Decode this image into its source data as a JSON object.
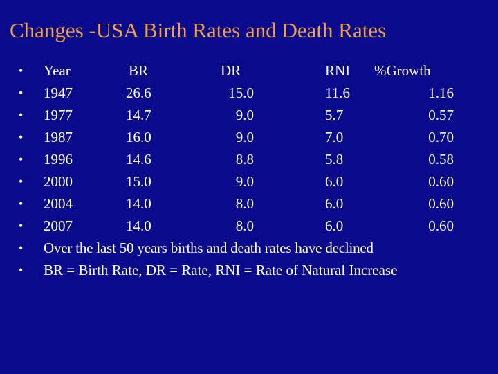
{
  "slide": {
    "title": "Changes -USA Birth Rates and Death Rates",
    "bullet_glyph": "•",
    "colors": {
      "background": "#0a0a8c",
      "title": "#f0a048",
      "text": "#ffffff"
    }
  },
  "table": {
    "headers": {
      "year": "Year",
      "br": "BR",
      "dr": "DR",
      "rni": "RNI",
      "growth": "%Growth"
    },
    "rows": [
      {
        "year": "1947",
        "br": "26.6",
        "dr": "15.0",
        "rni": "11.6",
        "growth": "1.16"
      },
      {
        "year": "1977",
        "br": "14.7",
        "dr": "9.0",
        "rni": "5.7",
        "growth": "0.57"
      },
      {
        "year": "1987",
        "br": "16.0",
        "dr": "9.0",
        "rni": "7.0",
        "growth": "0.70"
      },
      {
        "year": "1996",
        "br": "14.6",
        "dr": "8.8",
        "rni": "5.8",
        "growth": "0.58"
      },
      {
        "year": "2000",
        "br": "15.0",
        "dr": "9.0",
        "rni": "6.0",
        "growth": "0.60"
      },
      {
        "year": "2004",
        "br": "14.0",
        "dr": "8.0",
        "rni": "6.0",
        "growth": "0.60"
      },
      {
        "year": "2007",
        "br": "14.0",
        "dr": "8.0",
        "rni": "6.0",
        "growth": "0.60"
      }
    ]
  },
  "notes": [
    "Over the last 50 years births and death rates have declined",
    "BR = Birth Rate, DR = Rate, RNI = Rate of Natural Increase"
  ]
}
